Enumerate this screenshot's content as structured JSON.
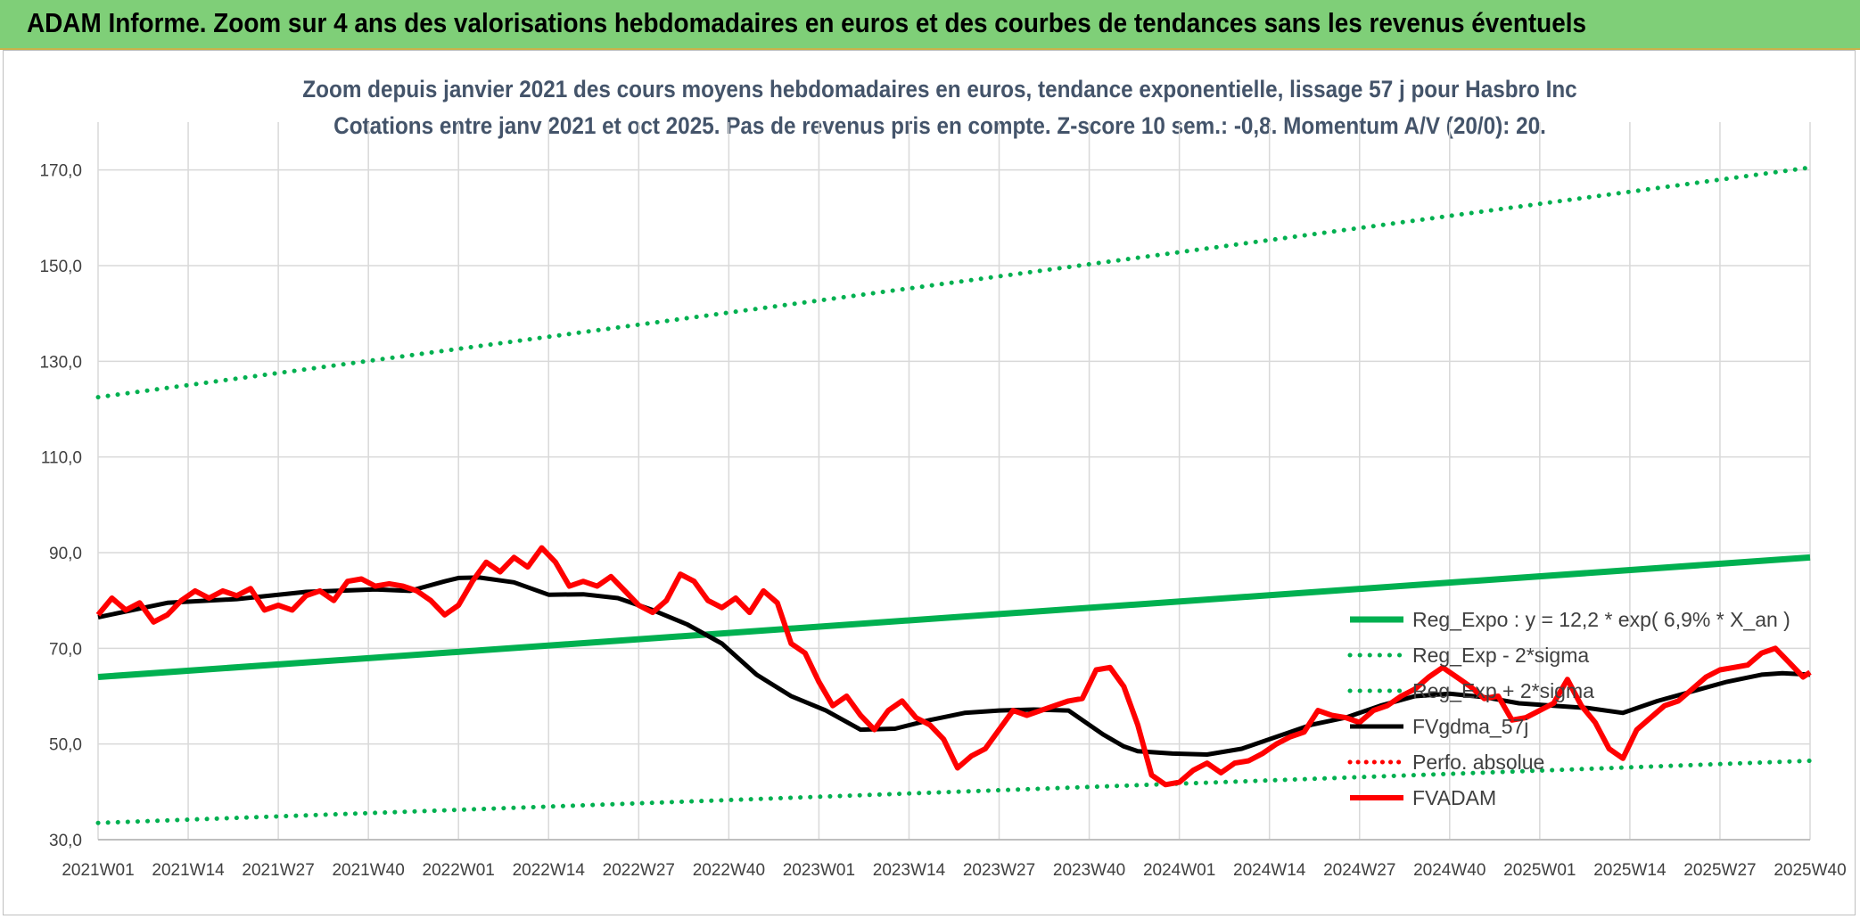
{
  "banner": {
    "title": "ADAM Informe. Zoom sur 4 ans des valorisations hebdomadaires en euros et des courbes de tendances sans les revenus éventuels"
  },
  "colors": {
    "banner_bg": "#7fcf78",
    "trend_green": "#00b050",
    "smooth_black": "#000000",
    "adam_red": "#ff0000",
    "perfo_red": "#ff0000",
    "grid": "#d9d9d9"
  },
  "chart_data": {
    "type": "line",
    "title": "Zoom depuis janvier 2021 des cours moyens hebdomadaires en euros, tendance exponentielle, lissage 57 j pour Hasbro Inc",
    "subtitle": "Cotations entre janv 2021 et oct 2025. Pas de revenus pris en compte. Z-score 10 sem.: -0,8. Momentum A/V (20/0): 20.",
    "grid": true,
    "legend_position": "right",
    "ylim": [
      30,
      180
    ],
    "y_ticks": [
      "30,0",
      "50,0",
      "70,0",
      "90,0",
      "110,0",
      "130,0",
      "150,0",
      "170,0"
    ],
    "y_tick_values": [
      30,
      50,
      70,
      90,
      110,
      130,
      150,
      170
    ],
    "x_ticks": [
      "2021W01",
      "2021W14",
      "2021W27",
      "2021W40",
      "2022W01",
      "2022W14",
      "2022W27",
      "2022W40",
      "2023W01",
      "2023W14",
      "2023W27",
      "2023W40",
      "2024W01",
      "2024W14",
      "2024W27",
      "2024W40",
      "2025W01",
      "2025W14",
      "2025W27",
      "2025W40"
    ],
    "legend": [
      "Reg_Expo : y = 12,2 * exp( 6,9% *  X_an )",
      "Reg_Exp - 2*sigma",
      "Reg_Exp + 2*sigma",
      "FVgdma_57j",
      "Perfo. absolue",
      "FVADAM"
    ],
    "series": [
      {
        "name": "Reg_Expo : y = 12,2 * exp( 6,9% *  X_an )",
        "style": "solid-thick-green",
        "x": [
          0,
          247
        ],
        "values": [
          64,
          89
        ]
      },
      {
        "name": "Reg_Exp + 2*sigma",
        "style": "dotted-green",
        "x": [
          0,
          247
        ],
        "values": [
          122.5,
          170.5
        ]
      },
      {
        "name": "Reg_Exp - 2*sigma",
        "style": "dotted-green",
        "x": [
          0,
          247
        ],
        "values": [
          33.5,
          46.5
        ]
      },
      {
        "name": "FVgdma_57j",
        "style": "solid-black",
        "x": [
          0,
          10,
          20,
          30,
          40,
          45,
          50,
          52,
          55,
          60,
          65,
          70,
          75,
          80,
          85,
          90,
          95,
          100,
          105,
          110,
          115,
          120,
          125,
          130,
          135,
          140,
          145,
          148,
          150,
          155,
          160,
          165,
          170,
          175,
          180,
          185,
          190,
          195,
          200,
          205,
          210,
          215,
          220,
          225,
          230,
          235,
          240,
          243,
          247
        ],
        "values": [
          76.5,
          79.5,
          80.3,
          81.8,
          82.3,
          82,
          84,
          84.7,
          84.8,
          83.8,
          81.2,
          81.3,
          80.5,
          78,
          75,
          71,
          64.5,
          60,
          57,
          53,
          53.2,
          55,
          56.5,
          57,
          57.2,
          57,
          52,
          49.5,
          48.5,
          48,
          47.8,
          49,
          51.5,
          54,
          55.5,
          58,
          60,
          60.5,
          59.8,
          58.5,
          58,
          57.5,
          56.5,
          59,
          61,
          63,
          64.5,
          64.8,
          64.5
        ]
      },
      {
        "name": "FVADAM",
        "style": "solid-thick-red",
        "x": [
          0,
          2,
          4,
          6,
          8,
          10,
          12,
          14,
          16,
          18,
          20,
          22,
          24,
          26,
          28,
          30,
          32,
          34,
          36,
          38,
          40,
          42,
          44,
          46,
          48,
          50,
          52,
          54,
          56,
          58,
          60,
          62,
          64,
          66,
          68,
          70,
          72,
          74,
          76,
          78,
          80,
          82,
          84,
          86,
          88,
          90,
          92,
          94,
          96,
          98,
          100,
          102,
          104,
          106,
          108,
          110,
          112,
          114,
          116,
          118,
          120,
          122,
          124,
          126,
          128,
          130,
          132,
          134,
          136,
          138,
          140,
          142,
          144,
          146,
          148,
          150,
          152,
          154,
          156,
          158,
          160,
          162,
          164,
          166,
          168,
          170,
          172,
          174,
          176,
          178,
          180,
          182,
          184,
          186,
          188,
          190,
          192,
          194,
          196,
          198,
          200,
          202,
          204,
          206,
          208,
          210,
          212,
          214,
          216,
          218,
          220,
          222,
          224,
          226,
          228,
          230,
          232,
          234,
          236,
          238,
          240,
          242,
          244,
          246,
          247
        ],
        "values": [
          77,
          80.5,
          78,
          79.5,
          75.5,
          77,
          80,
          82,
          80.5,
          82,
          81,
          82.5,
          78,
          79,
          78,
          81,
          82,
          80,
          84,
          84.5,
          83,
          83.5,
          83,
          82,
          80,
          77,
          79,
          84,
          88,
          86,
          89,
          87,
          91,
          88,
          83,
          84,
          83,
          85,
          82,
          79,
          77.5,
          80,
          85.5,
          84,
          80,
          78.5,
          80.5,
          77.5,
          82,
          79.5,
          71,
          69,
          63,
          58,
          60,
          56,
          53,
          57,
          59,
          55.5,
          54,
          51,
          45,
          47.5,
          49,
          53,
          57,
          56,
          57,
          58,
          59,
          59.5,
          65.5,
          66,
          62,
          54,
          43.5,
          41.5,
          42,
          44.5,
          46,
          44,
          46,
          46.5,
          48,
          50,
          51.5,
          52.5,
          57,
          56,
          55.5,
          54.5,
          57,
          58,
          60,
          61.5,
          64,
          66,
          64,
          62,
          59.5,
          60,
          55,
          55.5,
          57,
          58.5,
          63.5,
          58,
          54.5,
          49,
          47,
          53,
          55.5,
          58,
          59,
          61.5,
          64,
          65.5,
          66,
          66.5,
          69,
          70,
          67,
          64,
          65
        ]
      }
    ]
  }
}
